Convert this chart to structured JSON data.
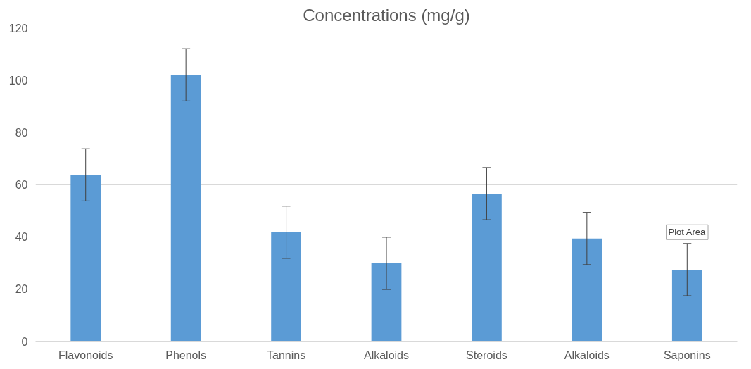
{
  "chart_data": {
    "type": "bar",
    "title": "Concentrations (mg/g)",
    "categories": [
      "Flavonoids",
      "Phenols",
      "Tannins",
      "Alkaloids",
      "Steroids",
      "Alkaloids",
      "Saponins"
    ],
    "values": [
      63.7,
      102,
      41.7,
      29.8,
      56.5,
      39.3,
      27.4
    ],
    "errors": [
      10,
      10,
      10,
      10,
      10,
      10,
      10
    ],
    "color": "#5b9bd5",
    "ylim": [
      0,
      120
    ],
    "yticks": [
      0,
      20,
      40,
      60,
      80,
      100,
      120
    ],
    "grid": "y",
    "annotations": [
      "Plot Area"
    ]
  }
}
